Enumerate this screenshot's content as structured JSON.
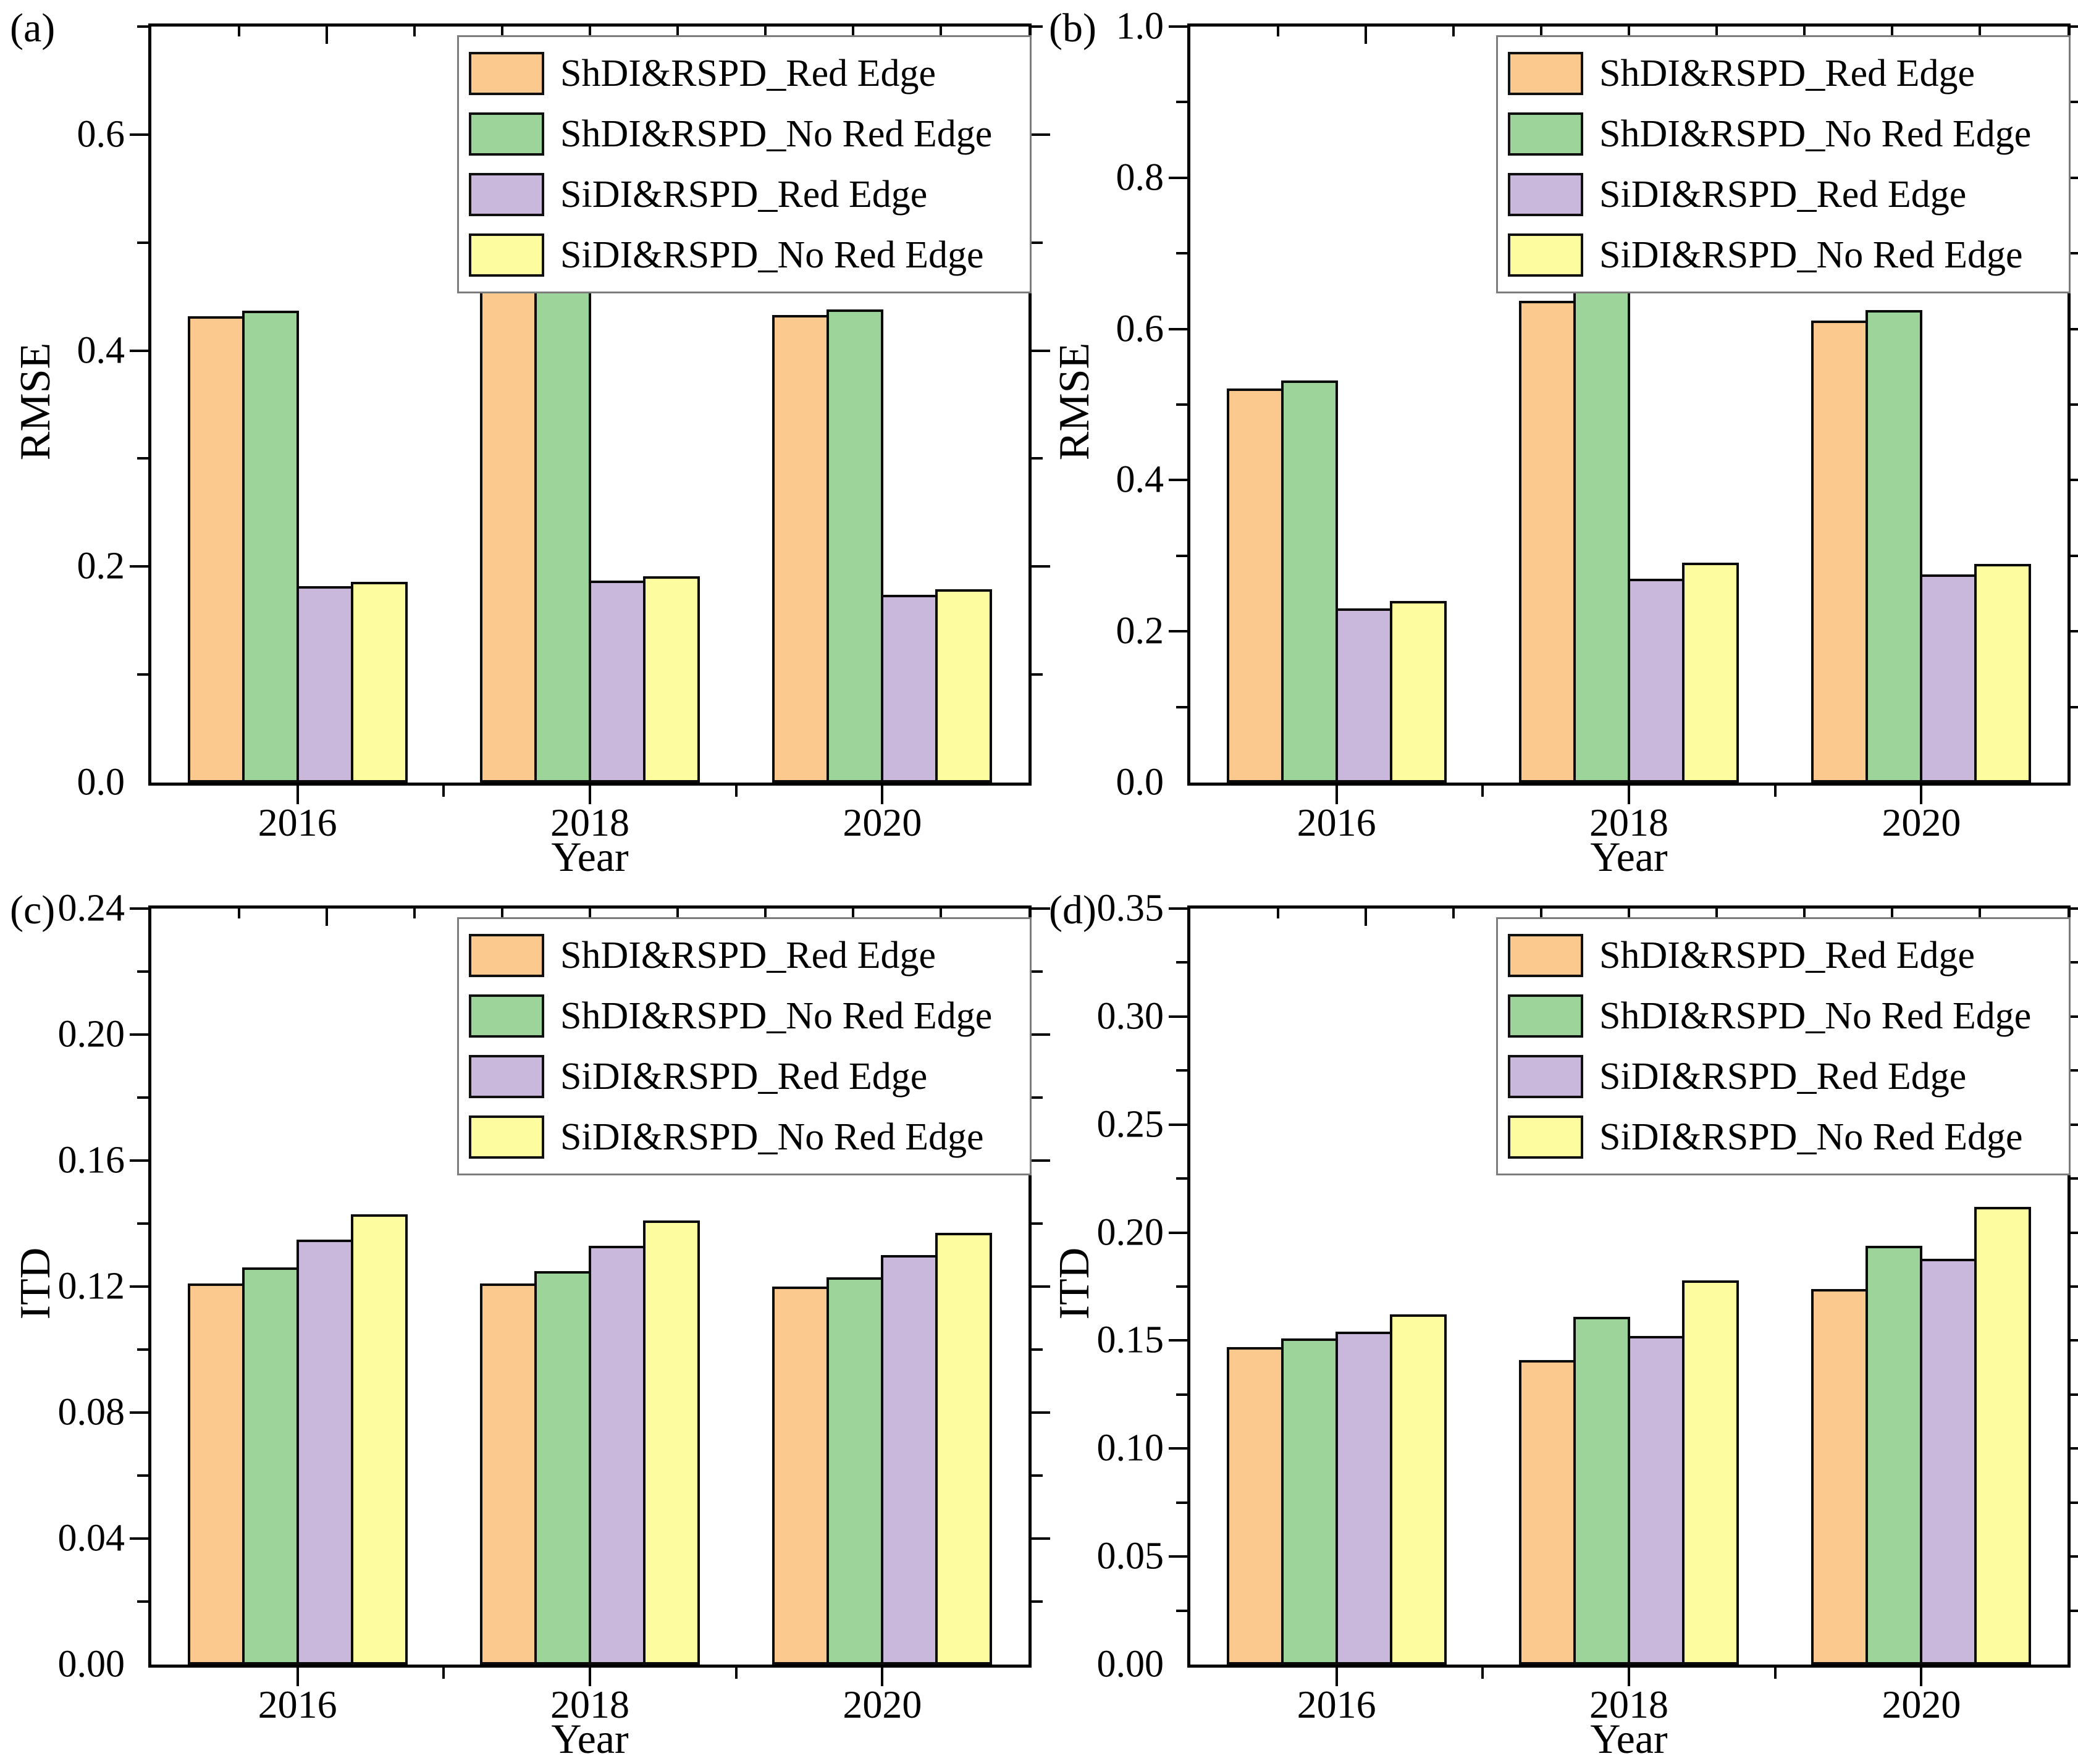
{
  "chart_data": [
    {
      "type": "bar",
      "panel_label": "(a)",
      "ylabel": "RMSE",
      "xlabel": "Year",
      "categories": [
        "2016",
        "2018",
        "2020"
      ],
      "series": [
        {
          "name": "ShDI&RSPD_Red Edge",
          "color": "#FBC88D",
          "values": [
            0.432,
            0.458,
            0.433
          ]
        },
        {
          "name": "ShDI&RSPD_No Red Edge",
          "color": "#9CD49A",
          "values": [
            0.437,
            0.462,
            0.438
          ]
        },
        {
          "name": "SiDI&RSPD_Red Edge",
          "color": "#C9B8DB",
          "values": [
            0.182,
            0.187,
            0.174
          ]
        },
        {
          "name": "SiDI&RSPD_No Red Edge",
          "color": "#FDFD9F",
          "values": [
            0.186,
            0.191,
            0.179
          ]
        }
      ],
      "ylim": [
        0,
        0.7
      ],
      "yticks": [
        "0.0",
        "0.2",
        "0.4",
        "0.6"
      ],
      "ymajor": 0.2,
      "yminor": 0.1,
      "legend_position": "top-right",
      "grid": false
    },
    {
      "type": "bar",
      "panel_label": "(b)",
      "ylabel": "RMSE",
      "xlabel": "Year",
      "categories": [
        "2016",
        "2018",
        "2020"
      ],
      "series": [
        {
          "name": "ShDI&RSPD_Red Edge",
          "color": "#FBC88D",
          "values": [
            0.521,
            0.637,
            0.611
          ]
        },
        {
          "name": "ShDI&RSPD_No Red Edge",
          "color": "#9CD49A",
          "values": [
            0.532,
            0.656,
            0.625
          ]
        },
        {
          "name": "SiDI&RSPD_Red Edge",
          "color": "#C9B8DB",
          "values": [
            0.23,
            0.27,
            0.275
          ]
        },
        {
          "name": "SiDI&RSPD_No Red Edge",
          "color": "#FDFD9F",
          "values": [
            0.24,
            0.291,
            0.289
          ]
        }
      ],
      "ylim": [
        0,
        1.0
      ],
      "yticks": [
        "0.0",
        "0.2",
        "0.4",
        "0.6",
        "0.8",
        "1.0"
      ],
      "ymajor": 0.2,
      "yminor": 0.1,
      "legend_position": "top-right",
      "grid": false
    },
    {
      "type": "bar",
      "panel_label": "(c)",
      "ylabel": "ITD",
      "xlabel": "Year",
      "categories": [
        "2016",
        "2018",
        "2020"
      ],
      "series": [
        {
          "name": "ShDI&RSPD_Red Edge",
          "color": "#FBC88D",
          "values": [
            0.121,
            0.121,
            0.12
          ]
        },
        {
          "name": "ShDI&RSPD_No Red Edge",
          "color": "#9CD49A",
          "values": [
            0.126,
            0.125,
            0.123
          ]
        },
        {
          "name": "SiDI&RSPD_Red Edge",
          "color": "#C9B8DB",
          "values": [
            0.135,
            0.133,
            0.13
          ]
        },
        {
          "name": "SiDI&RSPD_No Red Edge",
          "color": "#FDFD9F",
          "values": [
            0.143,
            0.141,
            0.137
          ]
        }
      ],
      "ylim": [
        0,
        0.24
      ],
      "yticks": [
        "0.00",
        "0.04",
        "0.08",
        "0.12",
        "0.16",
        "0.20",
        "0.24"
      ],
      "ymajor": 0.04,
      "yminor": 0.02,
      "legend_position": "top-right",
      "grid": false
    },
    {
      "type": "bar",
      "panel_label": "(d)",
      "ylabel": "ITD",
      "xlabel": "Year",
      "categories": [
        "2016",
        "2018",
        "2020"
      ],
      "series": [
        {
          "name": "ShDI&RSPD_Red Edge",
          "color": "#FBC88D",
          "values": [
            0.147,
            0.141,
            0.174
          ]
        },
        {
          "name": "ShDI&RSPD_No Red Edge",
          "color": "#9CD49A",
          "values": [
            0.151,
            0.161,
            0.194
          ]
        },
        {
          "name": "SiDI&RSPD_Red Edge",
          "color": "#C9B8DB",
          "values": [
            0.154,
            0.152,
            0.188
          ]
        },
        {
          "name": "SiDI&RSPD_No Red Edge",
          "color": "#FDFD9F",
          "values": [
            0.162,
            0.178,
            0.212
          ]
        }
      ],
      "ylim": [
        0,
        0.35
      ],
      "yticks": [
        "0.00",
        "0.05",
        "0.10",
        "0.15",
        "0.20",
        "0.25",
        "0.30",
        "0.35"
      ],
      "ymajor": 0.05,
      "yminor": 0.025,
      "legend_position": "top-right",
      "grid": false
    }
  ],
  "styles": {
    "bar_border": "#0a0a0a",
    "axis_color": "#000000",
    "background": "#ffffff"
  }
}
